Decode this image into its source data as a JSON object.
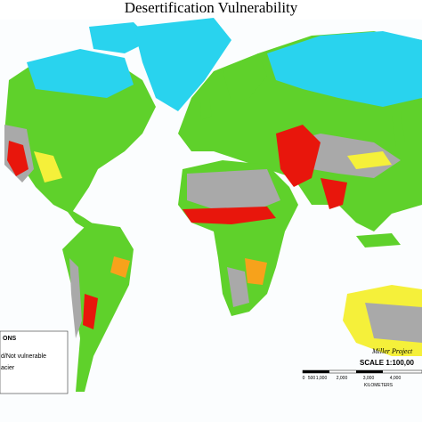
{
  "header": {
    "title": "Desertification Vulnerability"
  },
  "legend": {
    "heading": "ONS",
    "items": [
      "d/Not vulnerable",
      "acier"
    ]
  },
  "projection": {
    "name": "Miller Project",
    "scale": "SCALE 1:100,00",
    "scale_bar": {
      "labels": [
        "0",
        "500",
        "1,000",
        "2,000",
        "3,000",
        "4,000"
      ],
      "unit": "KILOMETERS"
    }
  }
}
